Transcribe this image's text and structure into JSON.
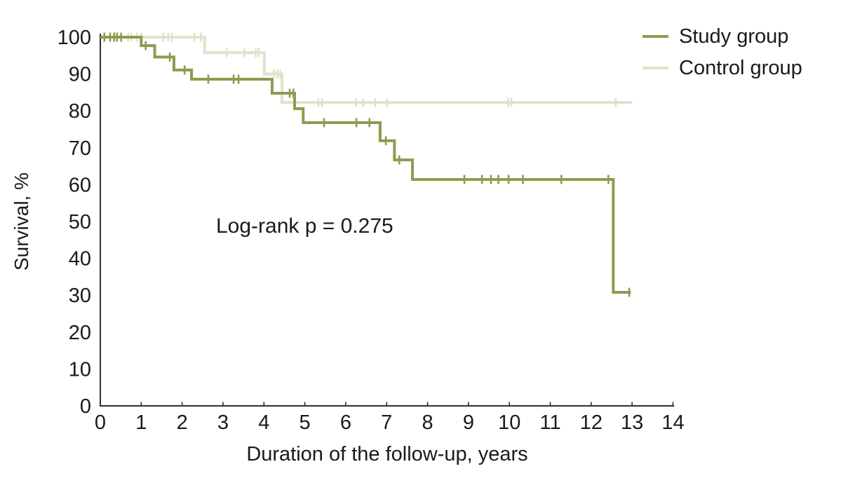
{
  "chart_data": {
    "type": "line",
    "subtype": "kaplan-meier-step",
    "title": "",
    "xlabel": "Duration of the follow-up, years",
    "ylabel": "Survival, %",
    "annotation": "Log-rank p = 0.275",
    "xlim": [
      0,
      14
    ],
    "ylim": [
      0,
      100
    ],
    "xticks": [
      0,
      1,
      2,
      3,
      4,
      5,
      6,
      7,
      8,
      9,
      10,
      11,
      12,
      13,
      14
    ],
    "yticks": [
      0,
      10,
      20,
      30,
      40,
      50,
      60,
      70,
      80,
      90,
      100
    ],
    "grid": false,
    "legend_position": "top-right",
    "axis_color": "#2e2e2e",
    "text_color": "#1a1a1a",
    "series": [
      {
        "name": "Control group",
        "color": "#dde4ca",
        "steps": [
          [
            0,
            100
          ],
          [
            2.55,
            95.8
          ],
          [
            4.01,
            90.0
          ],
          [
            4.44,
            82.3
          ]
        ],
        "end_x": 13.0,
        "censors": [
          [
            0.68,
            100
          ],
          [
            0.76,
            100
          ],
          [
            0.9,
            100
          ],
          [
            1.0,
            100
          ],
          [
            1.54,
            100
          ],
          [
            1.66,
            100
          ],
          [
            1.75,
            100
          ],
          [
            2.3,
            100
          ],
          [
            2.46,
            100
          ],
          [
            3.09,
            95.8
          ],
          [
            3.52,
            95.8
          ],
          [
            3.8,
            95.8
          ],
          [
            3.87,
            95.8
          ],
          [
            4.25,
            90.0
          ],
          [
            4.33,
            90.0
          ],
          [
            4.4,
            90.0
          ],
          [
            5.33,
            82.3
          ],
          [
            5.42,
            82.3
          ],
          [
            6.25,
            82.3
          ],
          [
            6.43,
            82.3
          ],
          [
            6.72,
            82.3
          ],
          [
            7.01,
            82.3
          ],
          [
            9.97,
            82.3
          ],
          [
            10.05,
            82.3
          ],
          [
            12.6,
            82.3
          ]
        ]
      },
      {
        "name": "Study group",
        "color": "#8a9d50",
        "steps": [
          [
            0,
            100
          ],
          [
            1.0,
            97.7
          ],
          [
            1.33,
            94.6
          ],
          [
            1.8,
            91.1
          ],
          [
            2.23,
            88.6
          ],
          [
            4.2,
            84.8
          ],
          [
            4.75,
            80.6
          ],
          [
            4.96,
            76.8
          ],
          [
            6.84,
            71.9
          ],
          [
            7.19,
            66.7
          ],
          [
            7.63,
            61.4
          ],
          [
            12.54,
            30.8
          ]
        ],
        "end_x": 12.97,
        "censors": [
          [
            0.1,
            100
          ],
          [
            0.24,
            100
          ],
          [
            0.34,
            100
          ],
          [
            0.41,
            100
          ],
          [
            0.51,
            100
          ],
          [
            1.11,
            97.7
          ],
          [
            1.7,
            94.6
          ],
          [
            2.06,
            91.1
          ],
          [
            2.64,
            88.6
          ],
          [
            3.26,
            88.6
          ],
          [
            3.38,
            88.6
          ],
          [
            4.63,
            84.8
          ],
          [
            4.72,
            84.8
          ],
          [
            5.47,
            76.8
          ],
          [
            6.26,
            76.8
          ],
          [
            6.58,
            76.8
          ],
          [
            6.98,
            71.9
          ],
          [
            7.31,
            66.7
          ],
          [
            8.9,
            61.4
          ],
          [
            9.33,
            61.4
          ],
          [
            9.55,
            61.4
          ],
          [
            9.73,
            61.4
          ],
          [
            9.98,
            61.4
          ],
          [
            10.33,
            61.4
          ],
          [
            11.27,
            61.4
          ],
          [
            12.42,
            61.4
          ],
          [
            12.93,
            30.8
          ]
        ]
      }
    ]
  },
  "legend": {
    "items": [
      {
        "label": "Study group"
      },
      {
        "label": "Control group"
      }
    ]
  }
}
